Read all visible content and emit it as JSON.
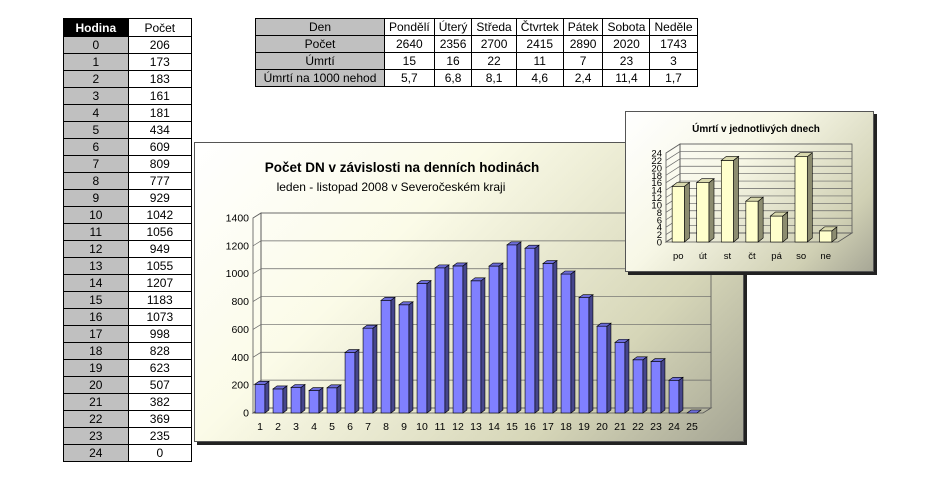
{
  "hour_table": {
    "header": {
      "hour": "Hodina",
      "count": "Počet"
    },
    "rows": [
      {
        "h": "0",
        "c": "206"
      },
      {
        "h": "1",
        "c": "173"
      },
      {
        "h": "2",
        "c": "183"
      },
      {
        "h": "3",
        "c": "161"
      },
      {
        "h": "4",
        "c": "181"
      },
      {
        "h": "5",
        "c": "434"
      },
      {
        "h": "6",
        "c": "609"
      },
      {
        "h": "7",
        "c": "809"
      },
      {
        "h": "8",
        "c": "777"
      },
      {
        "h": "9",
        "c": "929"
      },
      {
        "h": "10",
        "c": "1042"
      },
      {
        "h": "11",
        "c": "1056"
      },
      {
        "h": "12",
        "c": "949"
      },
      {
        "h": "13",
        "c": "1055"
      },
      {
        "h": "14",
        "c": "1207"
      },
      {
        "h": "15",
        "c": "1183"
      },
      {
        "h": "16",
        "c": "1073"
      },
      {
        "h": "17",
        "c": "998"
      },
      {
        "h": "18",
        "c": "828"
      },
      {
        "h": "19",
        "c": "623"
      },
      {
        "h": "20",
        "c": "507"
      },
      {
        "h": "21",
        "c": "382"
      },
      {
        "h": "22",
        "c": "369"
      },
      {
        "h": "23",
        "c": "235"
      },
      {
        "h": "24",
        "c": "0"
      }
    ]
  },
  "day_table": {
    "corner": "Den",
    "days": [
      "Pondělí",
      "Úterý",
      "Středa",
      "Čtvrtek",
      "Pátek",
      "Sobota",
      "Neděle"
    ],
    "rows": [
      {
        "label": "Počet",
        "values": [
          "2640",
          "2356",
          "2700",
          "2415",
          "2890",
          "2020",
          "1743"
        ]
      },
      {
        "label": "Úmrtí",
        "values": [
          "15",
          "16",
          "22",
          "11",
          "7",
          "23",
          "3"
        ]
      },
      {
        "label": "Úmrtí na 1000 nehod",
        "values": [
          "5,7",
          "6,8",
          "8,1",
          "4,6",
          "2,4",
          "11,4",
          "1,7"
        ]
      }
    ]
  },
  "chart_data": [
    {
      "type": "bar",
      "title": "Počet DN v závislosti na denních hodinách",
      "subtitle": "leden - listopad 2008 v Severočeském kraji",
      "categories": [
        "1",
        "2",
        "3",
        "4",
        "5",
        "6",
        "7",
        "8",
        "9",
        "10",
        "11",
        "12",
        "13",
        "14",
        "15",
        "16",
        "17",
        "18",
        "19",
        "20",
        "21",
        "22",
        "23",
        "24",
        "25"
      ],
      "values": [
        206,
        173,
        183,
        161,
        181,
        434,
        609,
        809,
        777,
        929,
        1042,
        1056,
        949,
        1055,
        1207,
        1183,
        1073,
        998,
        828,
        623,
        507,
        382,
        369,
        235,
        0
      ],
      "yticks": [
        "0",
        "200",
        "400",
        "600",
        "800",
        "1000",
        "1200",
        "1400"
      ],
      "ylim": [
        0,
        1400
      ],
      "bar_color": "#8080ff",
      "grid": true
    },
    {
      "type": "bar",
      "title": "Úmrtí v jednotlivých dnech",
      "categories": [
        "po",
        "út",
        "st",
        "čt",
        "pá",
        "so",
        "ne"
      ],
      "values": [
        15,
        16,
        22,
        11,
        7,
        23,
        3
      ],
      "yticks": [
        "0",
        "2",
        "4",
        "6",
        "8",
        "10",
        "12",
        "14",
        "16",
        "18",
        "20",
        "22",
        "24"
      ],
      "ylim": [
        0,
        24
      ],
      "bar_color": "#ffffcc",
      "grid": true
    }
  ]
}
